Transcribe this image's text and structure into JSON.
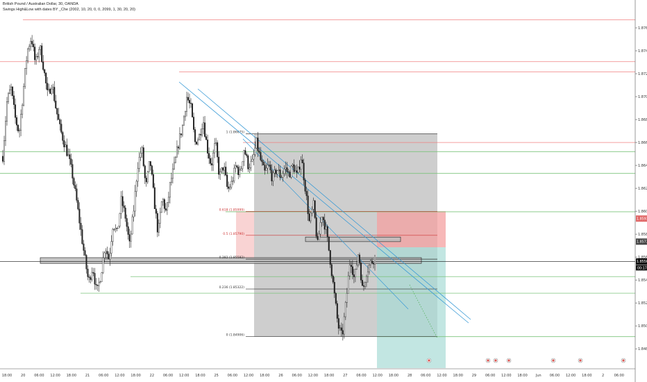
{
  "header": {
    "symbol_title": "British Pound / Australian Dollar, 30, OANDA",
    "indicator": "Swings High&Low with dates BY _Che (2002, 10, 20, 0, 0, 2099, 1, 30, 20, 20)"
  },
  "colors": {
    "candle": "#202020",
    "red_line": "#f08080",
    "green_line": "#7cc47c",
    "black_line": "#333333",
    "trend_line": "#3a9bd6",
    "gray_box": "#bdbdbd",
    "fib_red_zone": "#f7c8c8",
    "short_stop": "#f4a0a0",
    "short_target": "#a8dcd6"
  },
  "chart_data": {
    "type": "candlestick",
    "title": "British Pound / Australian Dollar, 30, OANDA",
    "ylim": [
      1.8468,
      1.8777
    ],
    "price_ticks": [
      "1.87600",
      "1.87400",
      "1.87200",
      "1.87000",
      "1.86800",
      "1.86600",
      "1.86400",
      "1.86200",
      "1.86000",
      "1.85800",
      "1.85600",
      "1.85400",
      "1.85200",
      "1.85000",
      "1.84800"
    ],
    "price_tick_values": [
      1.876,
      1.874,
      1.872,
      1.87,
      1.868,
      1.866,
      1.864,
      1.862,
      1.86,
      1.858,
      1.856,
      1.854,
      1.852,
      1.85,
      1.848
    ],
    "price_badges": [
      {
        "label": "1.85936",
        "value": 1.85936,
        "color": "#e06666"
      },
      {
        "label": "1.85735",
        "value": 1.85735,
        "color": "#444444"
      },
      {
        "label": "1.85562",
        "value": 1.85562,
        "color": "#111111"
      }
    ],
    "countdown_label": "00:17",
    "time_labels": [
      "18:00",
      "20",
      "06:00",
      "12:00",
      "18:00",
      "21",
      "06:00",
      "12:00",
      "18:00",
      "22",
      "06:00",
      "12:00",
      "18:00",
      "25",
      "06:00",
      "12:00",
      "18:00",
      "26",
      "06:00",
      "12:00",
      "18:00",
      "27",
      "06:00",
      "12:00",
      "18:00",
      "28",
      "06:00",
      "12:00",
      "18:00",
      "29",
      "06:00",
      "12:00",
      "18:00",
      "Jun",
      "06:00",
      "12:00",
      "18:00",
      "2",
      "06:00"
    ],
    "fib_levels": [
      {
        "label": "1 (1.86675)",
        "value": 1.86675,
        "color": "#333333"
      },
      {
        "label": "0.618 (1.85999)",
        "value": 1.85999,
        "color": "#cc3333"
      },
      {
        "label": "0.5 (1.85790)",
        "value": 1.8579,
        "color": "#cc3333"
      },
      {
        "label": "0.382 (1.85582)",
        "value": 1.85582,
        "color": "#333333"
      },
      {
        "label": "0.236 (1.85322)",
        "value": 1.85322,
        "color": "#333333"
      },
      {
        "label": "0 (1.84906)",
        "value": 1.84906,
        "color": "#333333"
      }
    ],
    "horizontal_levels": [
      {
        "value": 1.8767,
        "color": "red"
      },
      {
        "value": 1.87305,
        "color": "red"
      },
      {
        "value": 1.87215,
        "color": "red"
      },
      {
        "value": 1.866,
        "color": "red"
      },
      {
        "value": 1.8652,
        "color": "green"
      },
      {
        "value": 1.8633,
        "color": "green"
      },
      {
        "value": 1.85995,
        "color": "green"
      },
      {
        "value": 1.8543,
        "color": "green"
      },
      {
        "value": 1.85285,
        "color": "green"
      },
      {
        "value": 1.84906,
        "color": "green"
      }
    ],
    "candle_path": [
      1.8648,
      1.8695,
      1.8708,
      1.8682,
      1.8668,
      1.8705,
      1.874,
      1.8752,
      1.8728,
      1.8745,
      1.8725,
      1.87,
      1.8712,
      1.869,
      1.8672,
      1.866,
      1.8648,
      1.8632,
      1.861,
      1.8585,
      1.856,
      1.8538,
      1.8552,
      1.8528,
      1.8545,
      1.857,
      1.8558,
      1.859,
      1.858,
      1.861,
      1.8595,
      1.857,
      1.86,
      1.864,
      1.8655,
      1.862,
      1.8645,
      1.861,
      1.858,
      1.8612,
      1.8598,
      1.8625,
      1.864,
      1.866,
      1.8675,
      1.87,
      1.869,
      1.866,
      1.8665,
      1.868,
      1.8655,
      1.864,
      1.866,
      1.863,
      1.864,
      1.8618,
      1.8625,
      1.864,
      1.8632,
      1.8655,
      1.864,
      1.8642,
      1.866,
      1.8645,
      1.8633,
      1.864,
      1.8628,
      1.8637,
      1.863,
      1.8638,
      1.8632,
      1.864,
      1.863,
      1.8648,
      1.862,
      1.859,
      1.8605,
      1.857,
      1.8598,
      1.8585,
      1.856,
      1.853,
      1.85,
      1.849,
      1.8522,
      1.856,
      1.854,
      1.8565,
      1.853,
      1.8548,
      1.8555,
      1.856
    ],
    "zones": [
      {
        "name": "upper-sr-zone",
        "value_top": 1.85775,
        "value_bottom": 1.85735
      },
      {
        "name": "lower-sr-zone",
        "value_top": 1.85595,
        "value_bottom": 1.85545
      }
    ]
  }
}
